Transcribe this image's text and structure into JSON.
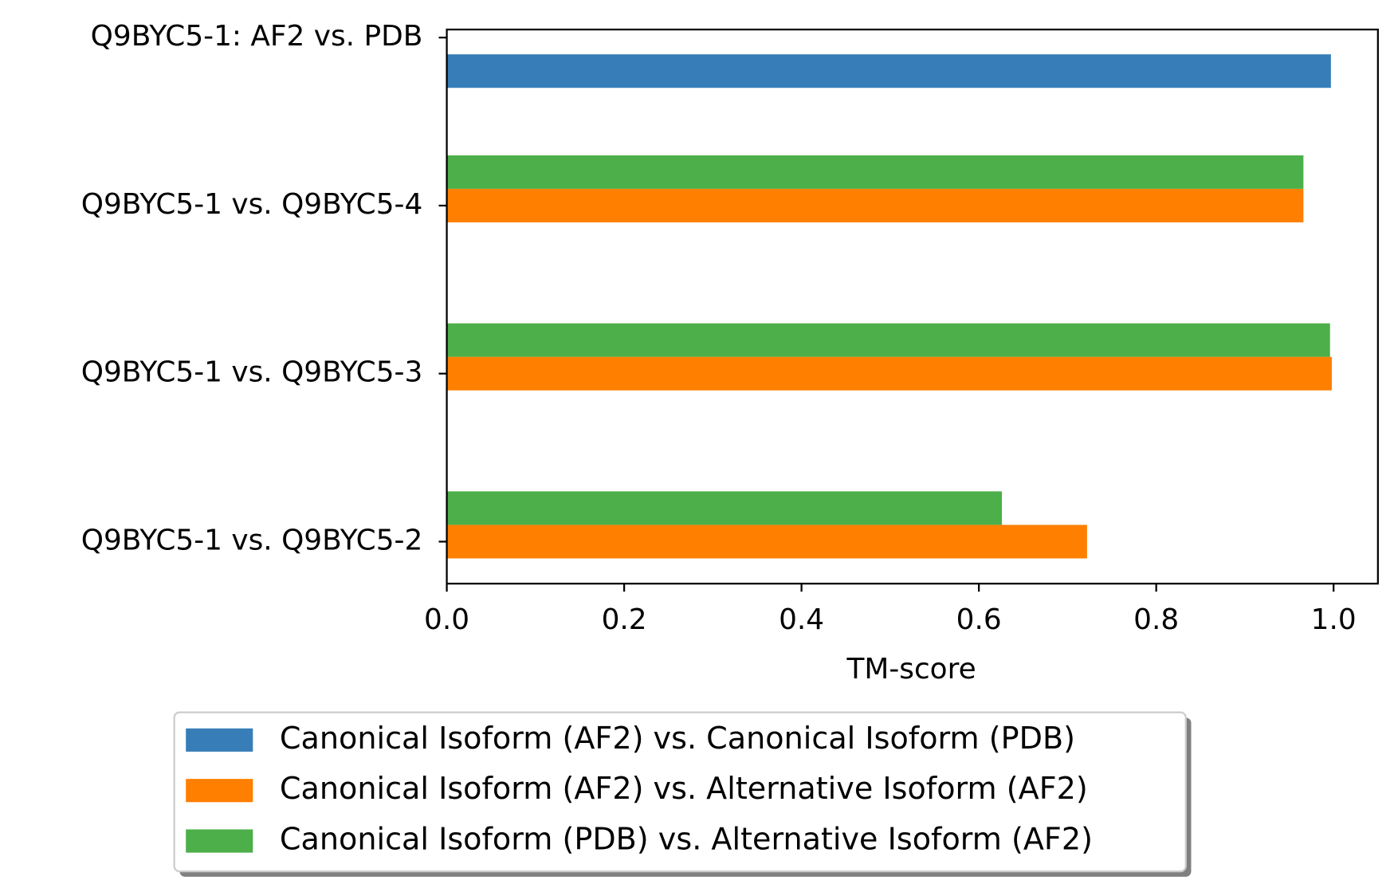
{
  "chart_data": {
    "type": "barh",
    "categories": [
      "Q9BYC5-1: AF2 vs. PDB",
      "Q9BYC5-1 vs. Q9BYC5-4",
      "Q9BYC5-1 vs. Q9BYC5-3",
      "Q9BYC5-1 vs. Q9BYC5-2"
    ],
    "series": [
      {
        "name": "Canonical Isoform (AF2) vs. Canonical Isoform (PDB)",
        "color": "#377eb8",
        "values": [
          0.997,
          null,
          null,
          null
        ]
      },
      {
        "name": "Canonical Isoform (AF2) vs. Alternative Isoform (AF2)",
        "color": "#ff7f00",
        "values": [
          null,
          0.966,
          0.998,
          0.722
        ]
      },
      {
        "name": "Canonical Isoform (PDB) vs. Alternative Isoform (AF2)",
        "color": "#4daf4a",
        "values": [
          null,
          0.966,
          0.996,
          0.626
        ]
      }
    ],
    "xlabel": "TM-score",
    "xlim": [
      0,
      1.05
    ],
    "xticks": [
      {
        "value": 0,
        "label": "0.0"
      },
      0.2,
      0.4,
      0.6,
      0.8,
      {
        "value": 1,
        "label": "1.0"
      }
    ],
    "legend": "below"
  }
}
